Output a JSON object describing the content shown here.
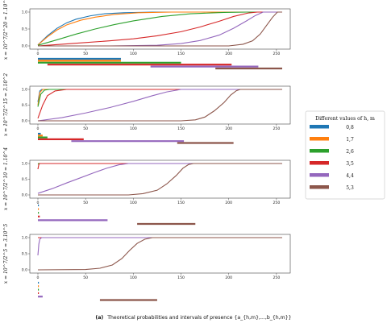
{
  "chart_data": [
    {
      "type": "line",
      "ylabel": "x = 10^7/2^20 ≈ 1.10^1",
      "xlim": [
        0,
        256
      ],
      "ylim": [
        0,
        1
      ],
      "xticks": [
        0,
        50,
        100,
        150,
        200,
        250
      ],
      "yticks": [
        0.0,
        0.5,
        1.0
      ],
      "series": [
        {
          "name": "0,8",
          "points": [
            [
              0,
              0.03
            ],
            [
              10,
              0.3
            ],
            [
              20,
              0.52
            ],
            [
              30,
              0.68
            ],
            [
              40,
              0.79
            ],
            [
              55,
              0.89
            ],
            [
              70,
              0.95
            ],
            [
              90,
              0.98
            ],
            [
              120,
              1.0
            ],
            [
              256,
              1.0
            ]
          ]
        },
        {
          "name": "1,7",
          "points": [
            [
              0,
              0.03
            ],
            [
              10,
              0.27
            ],
            [
              20,
              0.47
            ],
            [
              30,
              0.62
            ],
            [
              45,
              0.76
            ],
            [
              60,
              0.85
            ],
            [
              80,
              0.93
            ],
            [
              105,
              0.98
            ],
            [
              140,
              1.0
            ],
            [
              256,
              1.0
            ]
          ]
        },
        {
          "name": "2,6",
          "points": [
            [
              0,
              0.02
            ],
            [
              20,
              0.18
            ],
            [
              40,
              0.35
            ],
            [
              60,
              0.5
            ],
            [
              80,
              0.63
            ],
            [
              100,
              0.74
            ],
            [
              130,
              0.87
            ],
            [
              160,
              0.95
            ],
            [
              195,
              0.99
            ],
            [
              220,
              1.0
            ],
            [
              256,
              1.0
            ]
          ]
        },
        {
          "name": "3,5",
          "points": [
            [
              0,
              0.0
            ],
            [
              25,
              0.05
            ],
            [
              50,
              0.1
            ],
            [
              75,
              0.15
            ],
            [
              100,
              0.21
            ],
            [
              125,
              0.3
            ],
            [
              150,
              0.42
            ],
            [
              170,
              0.56
            ],
            [
              190,
              0.73
            ],
            [
              205,
              0.87
            ],
            [
              220,
              0.97
            ],
            [
              230,
              1.0
            ],
            [
              256,
              1.0
            ]
          ]
        },
        {
          "name": "4,4",
          "points": [
            [
              0,
              0.0
            ],
            [
              75,
              0.0
            ],
            [
              125,
              0.02
            ],
            [
              150,
              0.07
            ],
            [
              170,
              0.16
            ],
            [
              190,
              0.32
            ],
            [
              205,
              0.52
            ],
            [
              218,
              0.73
            ],
            [
              228,
              0.9
            ],
            [
              236,
              1.0
            ],
            [
              256,
              1.0
            ]
          ]
        },
        {
          "name": "5,3",
          "points": [
            [
              0,
              0.0
            ],
            [
              200,
              0.0
            ],
            [
              215,
              0.05
            ],
            [
              225,
              0.15
            ],
            [
              233,
              0.35
            ],
            [
              240,
              0.62
            ],
            [
              246,
              0.85
            ],
            [
              251,
              1.0
            ],
            [
              256,
              1.0
            ]
          ]
        }
      ],
      "intervals": [
        {
          "name": "0,8",
          "start": 0,
          "end": 87
        },
        {
          "name": "1,7",
          "start": 0,
          "end": 87
        },
        {
          "name": "2,6",
          "start": 0,
          "end": 150
        },
        {
          "name": "3,5",
          "start": 10,
          "end": 203
        },
        {
          "name": "4,4",
          "start": 118,
          "end": 231
        },
        {
          "name": "5,3",
          "start": 186,
          "end": 256
        }
      ]
    },
    {
      "type": "line",
      "ylabel": "x = 10^7/2^15 ≈ 3.10^2",
      "xlim": [
        0,
        256
      ],
      "ylim": [
        0,
        1
      ],
      "xticks": [
        0,
        50,
        100,
        150,
        200,
        250
      ],
      "yticks": [
        0.0,
        0.5,
        1.0
      ],
      "series": [
        {
          "name": "0,8",
          "points": [
            [
              0,
              0.6
            ],
            [
              2,
              0.95
            ],
            [
              4,
              1.0
            ],
            [
              256,
              1.0
            ]
          ]
        },
        {
          "name": "1,7",
          "points": [
            [
              0,
              0.5
            ],
            [
              2,
              0.9
            ],
            [
              5,
              1.0
            ],
            [
              256,
              1.0
            ]
          ]
        },
        {
          "name": "2,6",
          "points": [
            [
              0,
              0.45
            ],
            [
              3,
              0.85
            ],
            [
              7,
              0.98
            ],
            [
              12,
              1.0
            ],
            [
              256,
              1.0
            ]
          ]
        },
        {
          "name": "3,5",
          "points": [
            [
              0,
              0.08
            ],
            [
              5,
              0.5
            ],
            [
              10,
              0.8
            ],
            [
              18,
              0.95
            ],
            [
              30,
              1.0
            ],
            [
              256,
              1.0
            ]
          ]
        },
        {
          "name": "4,4",
          "points": [
            [
              0,
              0.0
            ],
            [
              25,
              0.1
            ],
            [
              50,
              0.25
            ],
            [
              75,
              0.42
            ],
            [
              100,
              0.62
            ],
            [
              120,
              0.8
            ],
            [
              135,
              0.92
            ],
            [
              150,
              1.0
            ],
            [
              256,
              1.0
            ]
          ]
        },
        {
          "name": "5,3",
          "points": [
            [
              0,
              0.0
            ],
            [
              150,
              0.0
            ],
            [
              165,
              0.03
            ],
            [
              175,
              0.12
            ],
            [
              185,
              0.32
            ],
            [
              195,
              0.58
            ],
            [
              202,
              0.82
            ],
            [
              208,
              0.96
            ],
            [
              212,
              1.0
            ],
            [
              256,
              1.0
            ]
          ]
        }
      ],
      "intervals": [
        {
          "name": "0,8",
          "start": 0,
          "end": 3
        },
        {
          "name": "1,7",
          "start": 0,
          "end": 5
        },
        {
          "name": "2,6",
          "start": 0,
          "end": 10
        },
        {
          "name": "3,5",
          "start": 0,
          "end": 48
        },
        {
          "name": "4,4",
          "start": 35,
          "end": 153
        },
        {
          "name": "5,3",
          "start": 146,
          "end": 205
        }
      ]
    },
    {
      "type": "line",
      "ylabel": "x = 10^7/2^10 ≈ 1.10^4",
      "xlim": [
        0,
        256
      ],
      "ylim": [
        0,
        1
      ],
      "xticks": [
        0,
        50,
        100,
        150,
        200,
        250
      ],
      "yticks": [
        0.0,
        0.5,
        1.0
      ],
      "series": [
        {
          "name": "0,8",
          "points": [
            [
              0,
              1.0
            ],
            [
              256,
              1.0
            ]
          ]
        },
        {
          "name": "1,7",
          "points": [
            [
              0,
              1.0
            ],
            [
              256,
              1.0
            ]
          ]
        },
        {
          "name": "2,6",
          "points": [
            [
              0,
              0.98
            ],
            [
              1,
              1.0
            ],
            [
              256,
              1.0
            ]
          ]
        },
        {
          "name": "3,5",
          "points": [
            [
              0,
              0.82
            ],
            [
              1,
              0.97
            ],
            [
              2,
              1.0
            ],
            [
              256,
              1.0
            ]
          ]
        },
        {
          "name": "4,4",
          "points": [
            [
              0,
              0.05
            ],
            [
              15,
              0.2
            ],
            [
              30,
              0.38
            ],
            [
              45,
              0.55
            ],
            [
              60,
              0.72
            ],
            [
              72,
              0.85
            ],
            [
              85,
              0.96
            ],
            [
              95,
              1.0
            ],
            [
              256,
              1.0
            ]
          ]
        },
        {
          "name": "5,3",
          "points": [
            [
              0,
              0.0
            ],
            [
              95,
              0.0
            ],
            [
              110,
              0.04
            ],
            [
              125,
              0.15
            ],
            [
              135,
              0.35
            ],
            [
              145,
              0.62
            ],
            [
              152,
              0.85
            ],
            [
              158,
              0.97
            ],
            [
              163,
              1.0
            ],
            [
              256,
              1.0
            ]
          ]
        }
      ],
      "intervals": [
        {
          "name": "0,8",
          "start": 0,
          "end": 1
        },
        {
          "name": "1,7",
          "start": 0,
          "end": 1
        },
        {
          "name": "2,6",
          "start": 0,
          "end": 1
        },
        {
          "name": "3,5",
          "start": 0,
          "end": 2
        },
        {
          "name": "4,4",
          "start": 0,
          "end": 73
        },
        {
          "name": "5,3",
          "start": 104,
          "end": 165
        }
      ]
    },
    {
      "type": "line",
      "ylabel": "x = 10^7/2^5 ≈ 3.10^5",
      "xlim": [
        0,
        256
      ],
      "ylim": [
        0,
        1
      ],
      "xticks": [
        0,
        50,
        100,
        150,
        200,
        250
      ],
      "yticks": [
        0.0,
        0.5,
        1.0
      ],
      "series": [
        {
          "name": "0,8",
          "points": [
            [
              0,
              1.0
            ],
            [
              256,
              1.0
            ]
          ]
        },
        {
          "name": "1,7",
          "points": [
            [
              0,
              1.0
            ],
            [
              256,
              1.0
            ]
          ]
        },
        {
          "name": "2,6",
          "points": [
            [
              0,
              1.0
            ],
            [
              256,
              1.0
            ]
          ]
        },
        {
          "name": "3,5",
          "points": [
            [
              0,
              1.0
            ],
            [
              256,
              1.0
            ]
          ]
        },
        {
          "name": "4,4",
          "points": [
            [
              0,
              0.45
            ],
            [
              1,
              0.8
            ],
            [
              2,
              0.95
            ],
            [
              4,
              1.0
            ],
            [
              256,
              1.0
            ]
          ]
        },
        {
          "name": "5,3",
          "points": [
            [
              0,
              0.0
            ],
            [
              50,
              0.01
            ],
            [
              65,
              0.05
            ],
            [
              78,
              0.15
            ],
            [
              88,
              0.35
            ],
            [
              96,
              0.6
            ],
            [
              104,
              0.82
            ],
            [
              112,
              0.95
            ],
            [
              120,
              1.0
            ],
            [
              256,
              1.0
            ]
          ]
        }
      ],
      "intervals": [
        {
          "name": "0,8",
          "start": 0,
          "end": 1
        },
        {
          "name": "1,7",
          "start": 0,
          "end": 1
        },
        {
          "name": "2,6",
          "start": 0,
          "end": 1
        },
        {
          "name": "3,5",
          "start": 0,
          "end": 1
        },
        {
          "name": "4,4",
          "start": 0,
          "end": 5
        },
        {
          "name": "5,3",
          "start": 65,
          "end": 125
        }
      ]
    }
  ],
  "legend": {
    "title": "Different values of h, m",
    "placement": "right",
    "entries": [
      {
        "label": "0,8",
        "color": "#1f77b4"
      },
      {
        "label": "1,7",
        "color": "#ff7f0e"
      },
      {
        "label": "2,6",
        "color": "#2ca02c"
      },
      {
        "label": "3,5",
        "color": "#d62728"
      },
      {
        "label": "4,4",
        "color": "#9467bd"
      },
      {
        "label": "5,3",
        "color": "#8c564b"
      }
    ]
  },
  "caption": {
    "label": "(a)",
    "text": "Theoretical probabilities and intervals of presence {a_{h,m},...,b_{h,m}}"
  }
}
